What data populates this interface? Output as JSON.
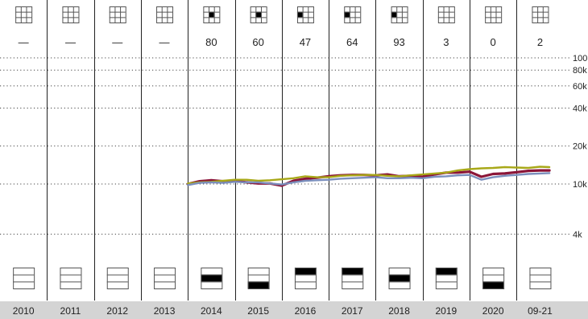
{
  "chart_data": {
    "type": "line",
    "title": "",
    "xlabel": "",
    "ylabel": "",
    "y_scale": "log",
    "ylim": [
      3000,
      100000
    ],
    "grid": "horizontal dotted",
    "periods": [
      "2010",
      "2011",
      "2012",
      "2013",
      "2014",
      "2015",
      "2016",
      "2017",
      "2018",
      "2019",
      "2020",
      "09-21"
    ],
    "quartile_ranks": [
      "—",
      "—",
      "—",
      "—",
      "80",
      "60",
      "47",
      "64",
      "93",
      "3",
      "0",
      "2"
    ],
    "style_box_top_position": [
      null,
      null,
      null,
      null,
      "middle-center",
      "middle-center",
      "middle-left",
      "middle-left",
      "middle-left",
      null,
      null,
      null
    ],
    "style_box_bottom_filled_rows": [
      [],
      [],
      [],
      [],
      [
        1
      ],
      [
        2
      ],
      [
        0
      ],
      [
        0
      ],
      [
        1
      ],
      [
        0
      ],
      [
        2
      ],
      []
    ],
    "y_ticks": [
      {
        "value": 100000,
        "label": "100k"
      },
      {
        "value": 80000,
        "label": "80k"
      },
      {
        "value": 60000,
        "label": "60k"
      },
      {
        "value": 40000,
        "label": "40k"
      },
      {
        "value": 20000,
        "label": "20k"
      },
      {
        "value": 10000,
        "label": "10k"
      },
      {
        "value": 4000,
        "label": "4k"
      }
    ],
    "x": [
      2014.0,
      2014.25,
      2014.5,
      2014.75,
      2015.0,
      2015.25,
      2015.5,
      2015.75,
      2016.0,
      2016.25,
      2016.5,
      2016.75,
      2017.0,
      2017.25,
      2017.5,
      2017.75,
      2018.0,
      2018.25,
      2018.5,
      2018.75,
      2019.0,
      2019.25,
      2019.5,
      2019.75,
      2020.0,
      2020.25,
      2020.5,
      2020.75,
      2021.0,
      2021.25,
      2021.5,
      2021.7
    ],
    "series": [
      {
        "color": "#8b1538",
        "values": [
          10000,
          10500,
          10700,
          10500,
          10600,
          10300,
          10100,
          10100,
          9700,
          10600,
          11000,
          11200,
          11500,
          11700,
          11800,
          11800,
          11700,
          11900,
          11500,
          11600,
          11400,
          11900,
          12300,
          12300,
          12500,
          11400,
          12000,
          12100,
          12400,
          12700,
          12800,
          12800
        ]
      },
      {
        "color": "#a8a818",
        "values": [
          10100,
          10300,
          10400,
          10600,
          10800,
          10800,
          10600,
          10700,
          10900,
          11100,
          11500,
          11300,
          11300,
          11600,
          11700,
          11800,
          11800,
          11600,
          11500,
          11700,
          11900,
          12100,
          12300,
          12800,
          13100,
          13300,
          13400,
          13600,
          13500,
          13400,
          13700,
          13600
        ]
      },
      {
        "color": "#7b8fbd",
        "values": [
          9800,
          10200,
          10300,
          10200,
          10400,
          10300,
          10300,
          10100,
          9900,
          10300,
          10600,
          10700,
          10800,
          11000,
          11100,
          11200,
          11300,
          11100,
          11100,
          11200,
          11100,
          11400,
          11500,
          11700,
          11800,
          10800,
          11300,
          11600,
          11800,
          12000,
          12100,
          12200
        ]
      }
    ]
  }
}
